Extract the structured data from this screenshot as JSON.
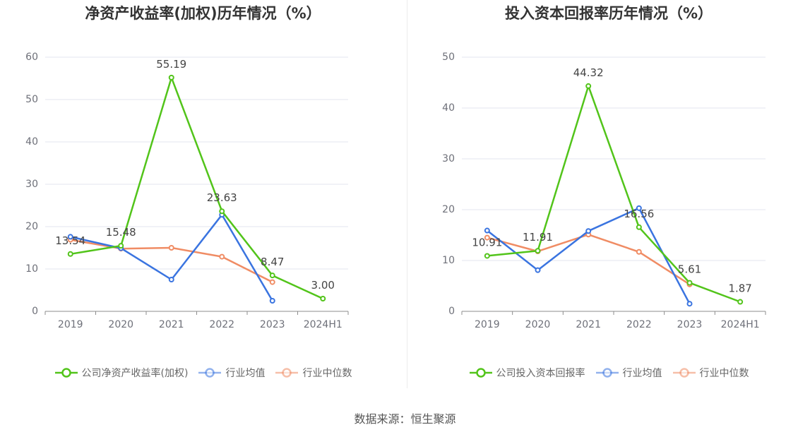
{
  "source": "数据来源：恒生聚源",
  "chart_data": [
    {
      "type": "line",
      "title": "净资产收益率(加权)历年情况（%）",
      "categories": [
        "2019",
        "2020",
        "2021",
        "2022",
        "2023",
        "2024H1"
      ],
      "ylim": [
        0,
        60
      ],
      "yticks": [
        0,
        10,
        20,
        30,
        40,
        50,
        60
      ],
      "grid": true,
      "legend_position": "bottom",
      "series": [
        {
          "name": "公司净资产收益率(加权)",
          "color": "#52c41a",
          "values": [
            13.54,
            15.48,
            55.19,
            23.63,
            8.47,
            3.0
          ],
          "labels": [
            "13.54",
            "15.48",
            "55.19",
            "23.63",
            "8.47",
            "3.00"
          ]
        },
        {
          "name": "行业均值",
          "color": "#3a74e0",
          "values": [
            17.6,
            14.9,
            7.5,
            22.8,
            2.5,
            null
          ]
        },
        {
          "name": "行业中位数",
          "color": "#f08c64",
          "values": [
            16.9,
            14.8,
            15.0,
            12.9,
            6.9,
            null
          ]
        }
      ]
    },
    {
      "type": "line",
      "title": "投入资本回报率历年情况（%）",
      "categories": [
        "2019",
        "2020",
        "2021",
        "2022",
        "2023",
        "2024H1"
      ],
      "ylim": [
        0,
        50
      ],
      "yticks": [
        0,
        10,
        20,
        30,
        40,
        50
      ],
      "grid": true,
      "legend_position": "bottom",
      "series": [
        {
          "name": "公司投入资本回报率",
          "color": "#52c41a",
          "values": [
            10.91,
            11.91,
            44.32,
            16.56,
            5.61,
            1.87
          ],
          "labels": [
            "10.91",
            "11.91",
            "44.32",
            "16.56",
            "5.61",
            "1.87"
          ]
        },
        {
          "name": "行业均值",
          "color": "#3a74e0",
          "values": [
            15.9,
            8.1,
            15.8,
            20.3,
            1.5,
            null
          ]
        },
        {
          "name": "行业中位数",
          "color": "#f08c64",
          "values": [
            14.5,
            11.8,
            15.1,
            11.7,
            5.3,
            null
          ]
        }
      ]
    }
  ]
}
